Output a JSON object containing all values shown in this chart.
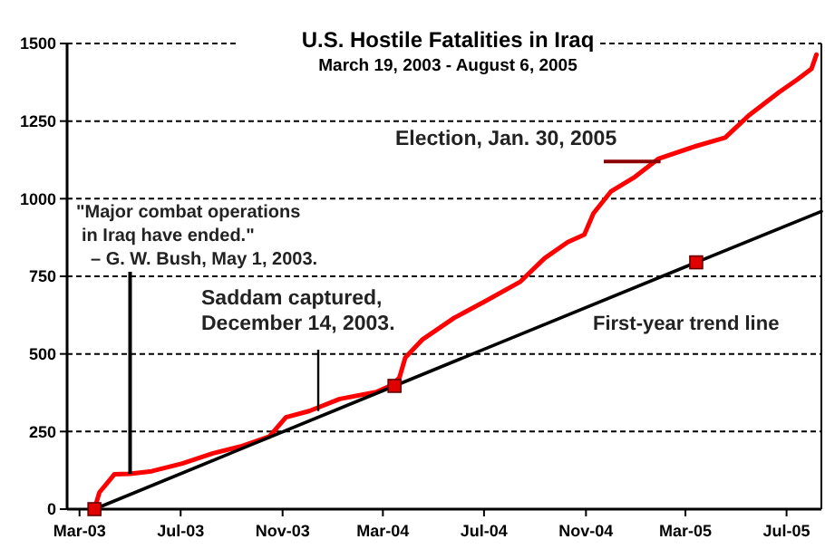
{
  "chart_data": {
    "type": "line",
    "title": "U.S. Hostile Fatalities in Iraq",
    "subtitle": "March 19, 2003 - August 6, 2005",
    "xlim": [
      "2003-02-14",
      "2005-08-12"
    ],
    "xticks": [
      {
        "value": "2003-03-01",
        "label": "Mar-03"
      },
      {
        "value": "2003-07-01",
        "label": "Jul-03"
      },
      {
        "value": "2003-11-01",
        "label": "Nov-03"
      },
      {
        "value": "2004-03-01",
        "label": "Mar-04"
      },
      {
        "value": "2004-07-01",
        "label": "Jul-04"
      },
      {
        "value": "2004-11-01",
        "label": "Nov-04"
      },
      {
        "value": "2005-03-01",
        "label": "Mar-05"
      },
      {
        "value": "2005-07-01",
        "label": "Jul-05"
      }
    ],
    "ylim": [
      0,
      1500
    ],
    "yticks": [
      0,
      250,
      500,
      750,
      1000,
      1250,
      1500
    ],
    "grid": "y",
    "series": [
      {
        "color": "#ff0000",
        "x": [
          "2003-03-19",
          "2003-03-25",
          "2003-04-03",
          "2003-04-12",
          "2003-05-01",
          "2003-05-27",
          "2003-07-03",
          "2003-08-09",
          "2003-09-13",
          "2003-10-16",
          "2003-11-05",
          "2003-12-03",
          "2004-01-09",
          "2004-02-22",
          "2004-03-12",
          "2004-03-21",
          "2004-03-28",
          "2004-04-18",
          "2004-05-26",
          "2004-07-02",
          "2004-08-14",
          "2004-09-12",
          "2004-10-10",
          "2004-10-30",
          "2004-11-10",
          "2004-12-01",
          "2004-12-30",
          "2005-01-27",
          "2005-03-12",
          "2005-04-18",
          "2005-05-16",
          "2005-06-22",
          "2005-07-14",
          "2005-07-31",
          "2005-08-06"
        ],
        "values": [
          0,
          54,
          83,
          112,
          114,
          122,
          147,
          180,
          203,
          234,
          296,
          316,
          355,
          377,
          400,
          424,
          488,
          547,
          616,
          669,
          733,
          808,
          860,
          884,
          953,
          1023,
          1070,
          1128,
          1168,
          1197,
          1267,
          1343,
          1384,
          1418,
          1464
        ]
      },
      {
        "name": "First-year trend line",
        "color": "#000000",
        "x": [
          "2003-03-19",
          "2004-03-15",
          "2005-03-14",
          "2005-08-12"
        ],
        "values": [
          0,
          397,
          795,
          959
        ]
      },
      {
        "type": "scatter",
        "marker": "square",
        "color": "#e00000",
        "x": [
          "2003-03-19",
          "2004-03-15",
          "2005-03-14"
        ],
        "values": [
          0,
          397,
          795
        ]
      }
    ],
    "annotations": [
      {
        "text": "\"Major combat operations\nin Iraq have ended.\"\n– G. W. Bush, May 1, 2003.",
        "x": "2003-05-01",
        "y": 114
      },
      {
        "text": "Saddam captured,\nDecember 14, 2003.",
        "x": "2003-12-14",
        "y": 316
      },
      {
        "text": "Election, Jan. 30, 2005",
        "x": "2005-01-30",
        "y": 1120
      }
    ]
  }
}
